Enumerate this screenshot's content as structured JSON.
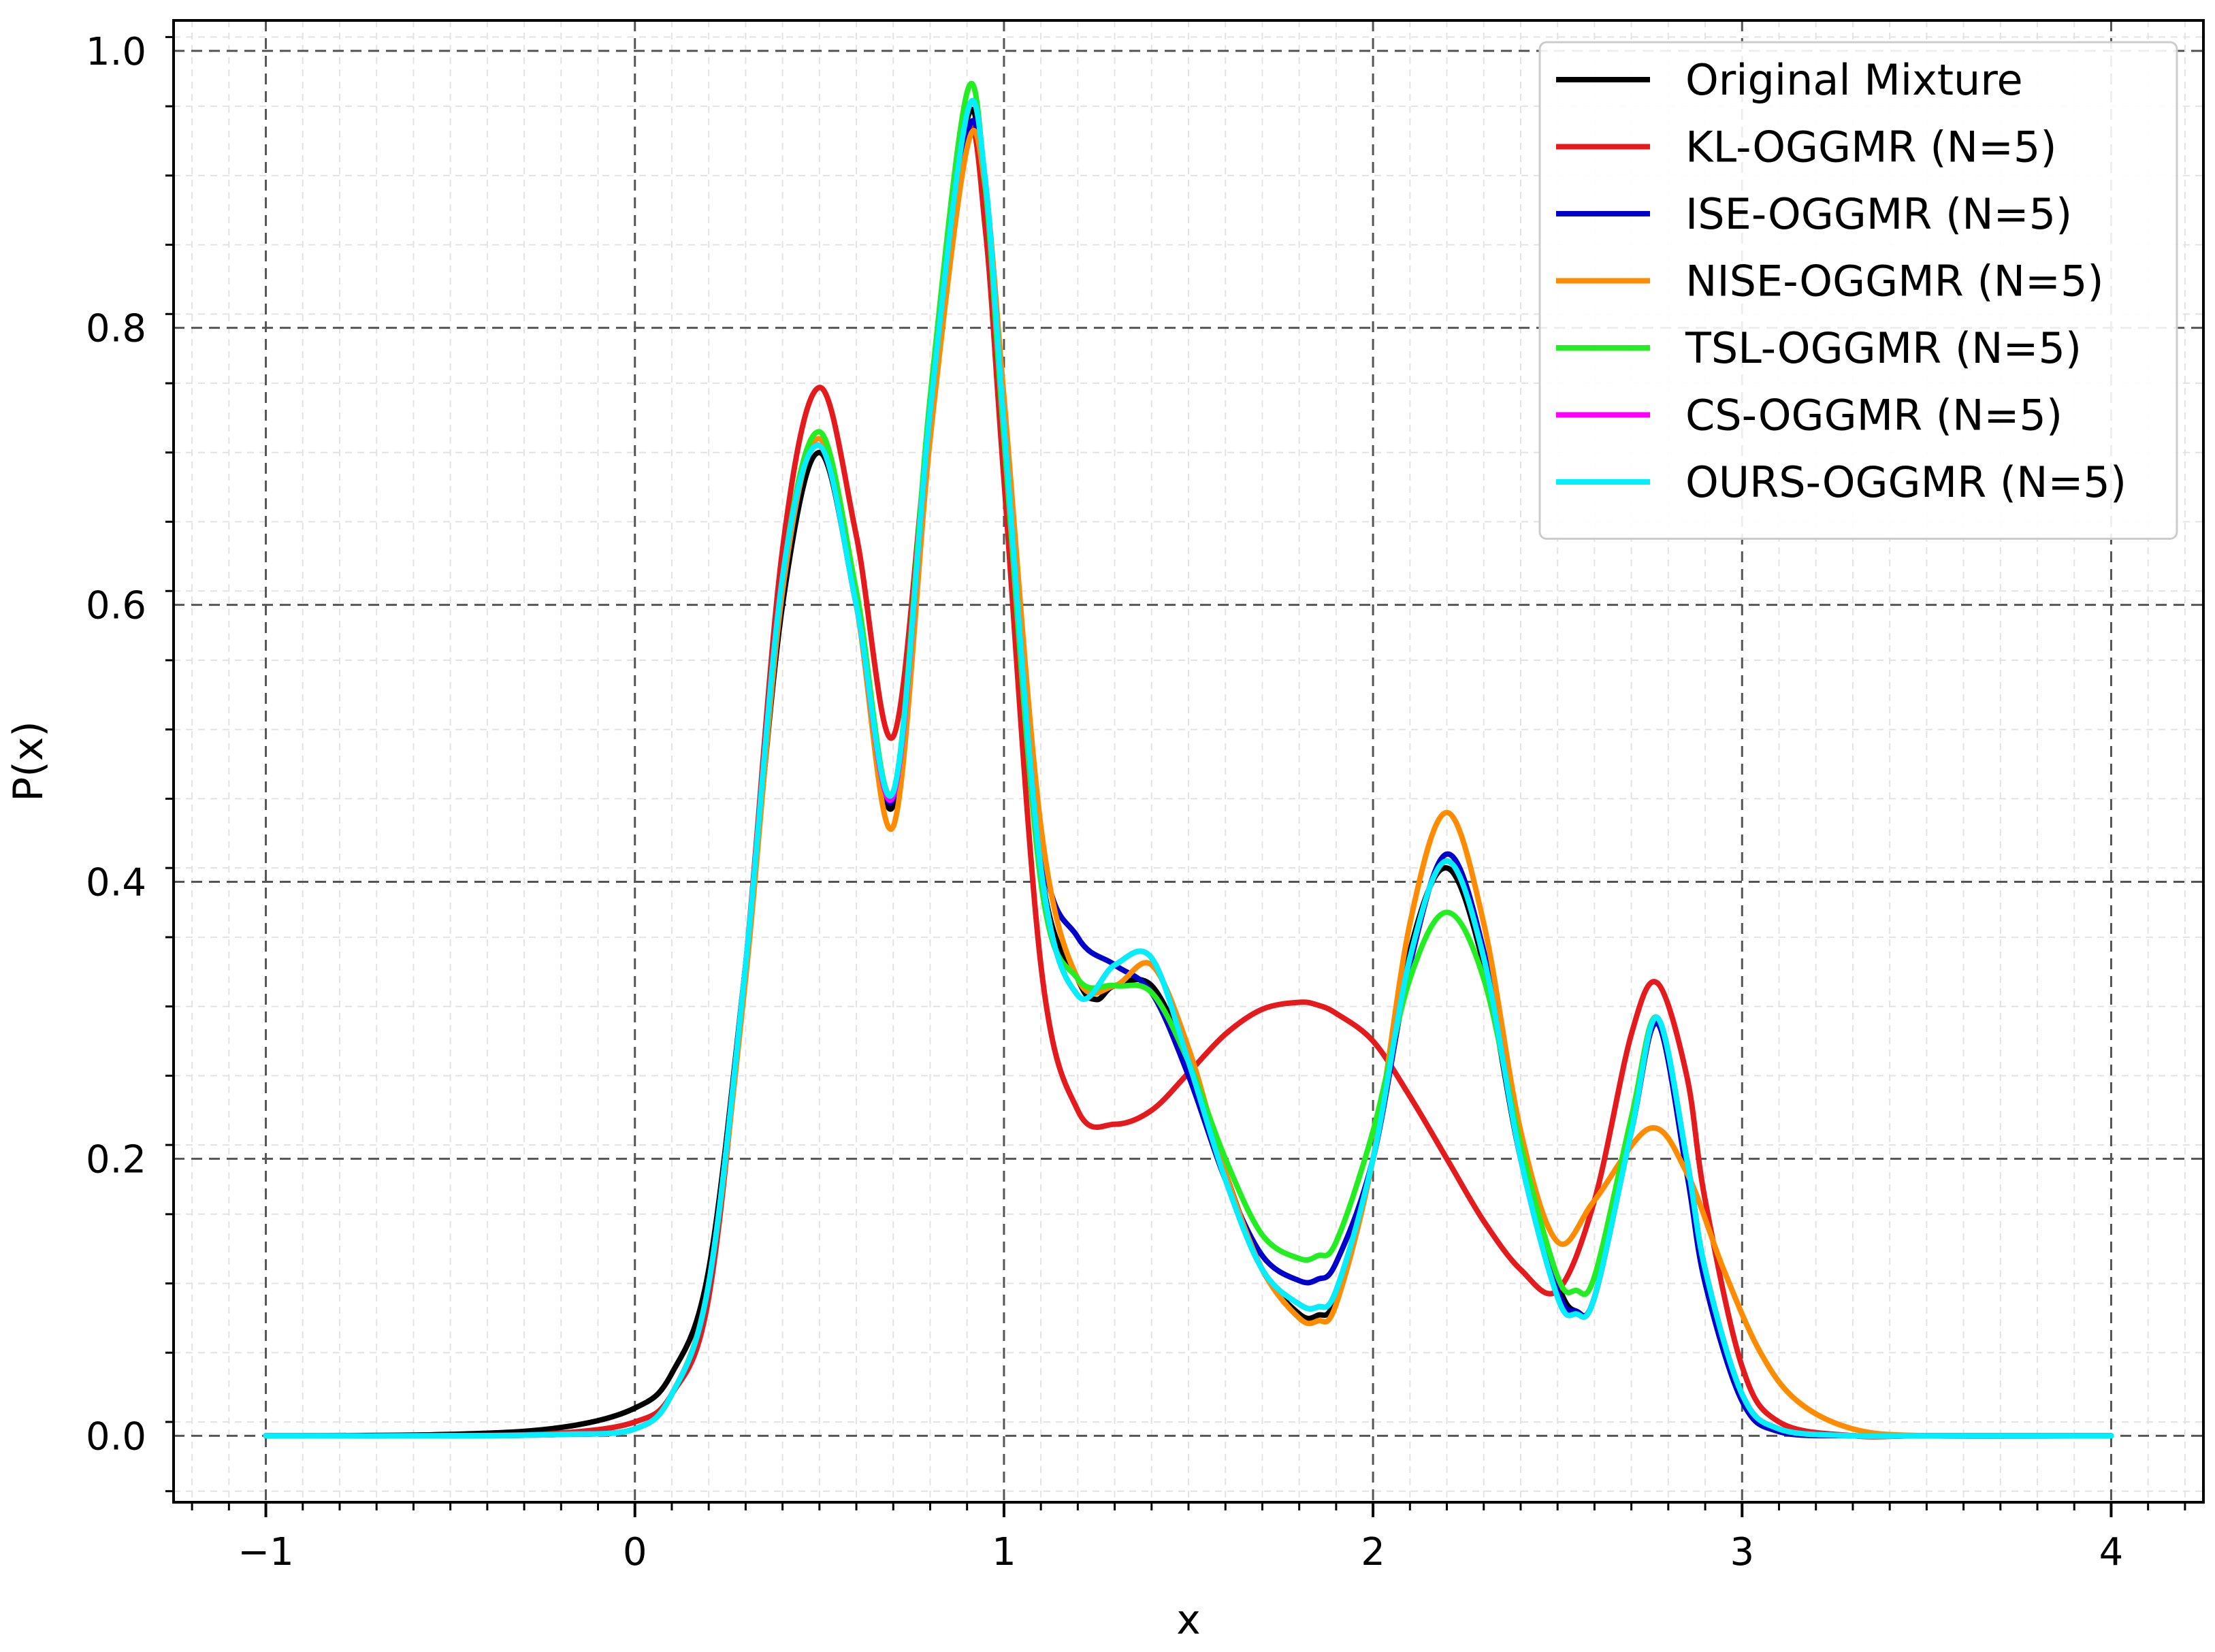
{
  "chart_data": {
    "type": "line",
    "title": "",
    "xlabel": "x",
    "ylabel": "P(x)",
    "xlim": [
      -1.25,
      4.25
    ],
    "ylim": [
      -0.048,
      1.022
    ],
    "x_ticks": [
      -1,
      0,
      1,
      2,
      3,
      4
    ],
    "x_tick_labels": [
      "−1",
      "0",
      "1",
      "2",
      "3",
      "4"
    ],
    "y_ticks": [
      0.0,
      0.2,
      0.4,
      0.6,
      0.8,
      1.0
    ],
    "y_tick_labels": [
      "0.0",
      "0.2",
      "0.4",
      "0.6",
      "0.8",
      "1.0"
    ],
    "grid": true,
    "minor_grid": true,
    "legend_position": "top-right",
    "series": [
      {
        "name": "Original Mixture",
        "color": "#000000",
        "x": [
          -1.0,
          -0.5,
          -0.2,
          0.0,
          0.1,
          0.2,
          0.3,
          0.4,
          0.5,
          0.6,
          0.7,
          0.8,
          0.9,
          0.95,
          1.0,
          1.1,
          1.2,
          1.25,
          1.3,
          1.4,
          1.5,
          1.6,
          1.7,
          1.8,
          1.85,
          1.9,
          2.0,
          2.1,
          2.2,
          2.3,
          2.4,
          2.5,
          2.55,
          2.6,
          2.7,
          2.77,
          2.85,
          2.9,
          3.0,
          3.1,
          3.3,
          3.5,
          4.0
        ],
        "y": [
          0.0,
          0.001,
          0.006,
          0.02,
          0.045,
          0.12,
          0.34,
          0.6,
          0.71,
          0.6,
          0.455,
          0.73,
          0.95,
          0.89,
          0.72,
          0.41,
          0.33,
          0.315,
          0.325,
          0.325,
          0.27,
          0.19,
          0.12,
          0.088,
          0.087,
          0.1,
          0.2,
          0.35,
          0.41,
          0.34,
          0.2,
          0.11,
          0.09,
          0.1,
          0.22,
          0.298,
          0.2,
          0.12,
          0.03,
          0.005,
          0.0,
          0.0,
          0.0
        ]
      },
      {
        "name": "KL-OGGMR (N=5)",
        "color": "#e41a1c",
        "x": [
          -1.0,
          -0.5,
          -0.2,
          0.0,
          0.1,
          0.2,
          0.3,
          0.4,
          0.5,
          0.6,
          0.7,
          0.8,
          0.9,
          0.95,
          1.0,
          1.1,
          1.2,
          1.3,
          1.4,
          1.5,
          1.6,
          1.7,
          1.8,
          1.85,
          1.9,
          2.0,
          2.1,
          2.2,
          2.3,
          2.4,
          2.5,
          2.6,
          2.7,
          2.77,
          2.85,
          2.9,
          3.0,
          3.1,
          3.3,
          3.5,
          4.0
        ],
        "y": [
          0.0,
          0.0,
          0.002,
          0.01,
          0.03,
          0.1,
          0.34,
          0.64,
          0.757,
          0.65,
          0.505,
          0.74,
          0.94,
          0.87,
          0.69,
          0.34,
          0.235,
          0.225,
          0.235,
          0.262,
          0.29,
          0.308,
          0.313,
          0.311,
          0.305,
          0.285,
          0.245,
          0.2,
          0.155,
          0.12,
          0.105,
          0.17,
          0.29,
          0.327,
          0.26,
          0.17,
          0.05,
          0.01,
          0.0,
          0.0,
          0.0
        ]
      },
      {
        "name": "ISE-OGGMR (N=5)",
        "color": "#0000cc",
        "x": [
          -1.0,
          -0.5,
          -0.2,
          0.0,
          0.1,
          0.2,
          0.3,
          0.4,
          0.5,
          0.6,
          0.7,
          0.8,
          0.9,
          0.95,
          1.0,
          1.1,
          1.2,
          1.3,
          1.4,
          1.5,
          1.6,
          1.7,
          1.8,
          1.85,
          1.9,
          2.0,
          2.1,
          2.2,
          2.3,
          2.4,
          2.5,
          2.55,
          2.6,
          2.7,
          2.77,
          2.85,
          2.9,
          3.0,
          3.1,
          3.3,
          3.5,
          4.0
        ],
        "y": [
          0.0,
          0.0,
          0.001,
          0.005,
          0.03,
          0.11,
          0.34,
          0.62,
          0.715,
          0.6,
          0.46,
          0.74,
          0.94,
          0.9,
          0.74,
          0.43,
          0.36,
          0.34,
          0.32,
          0.26,
          0.185,
          0.13,
          0.112,
          0.113,
          0.125,
          0.2,
          0.34,
          0.42,
          0.35,
          0.2,
          0.105,
          0.09,
          0.1,
          0.22,
          0.298,
          0.19,
          0.11,
          0.025,
          0.003,
          0.0,
          0.0,
          0.0
        ]
      },
      {
        "name": "NISE-OGGMR (N=5)",
        "color": "#ff8c00",
        "x": [
          -1.0,
          -0.5,
          -0.2,
          0.0,
          0.1,
          0.2,
          0.3,
          0.4,
          0.5,
          0.6,
          0.7,
          0.8,
          0.9,
          0.95,
          1.0,
          1.1,
          1.2,
          1.3,
          1.4,
          1.5,
          1.6,
          1.7,
          1.8,
          1.85,
          1.9,
          2.0,
          2.1,
          2.2,
          2.3,
          2.4,
          2.5,
          2.6,
          2.75,
          2.85,
          2.95,
          3.05,
          3.15,
          3.3,
          3.5,
          4.0
        ],
        "y": [
          0.0,
          0.0,
          0.001,
          0.005,
          0.03,
          0.11,
          0.33,
          0.61,
          0.72,
          0.6,
          0.44,
          0.72,
          0.93,
          0.9,
          0.75,
          0.44,
          0.33,
          0.325,
          0.34,
          0.28,
          0.19,
          0.12,
          0.085,
          0.083,
          0.095,
          0.2,
          0.37,
          0.45,
          0.37,
          0.22,
          0.14,
          0.17,
          0.222,
          0.19,
          0.12,
          0.06,
          0.025,
          0.005,
          0.0,
          0.0
        ]
      },
      {
        "name": "TSL-OGGMR (N=5)",
        "color": "#22ee22",
        "x": [
          -1.0,
          -0.5,
          -0.2,
          0.0,
          0.1,
          0.2,
          0.3,
          0.4,
          0.5,
          0.6,
          0.7,
          0.8,
          0.9,
          0.95,
          1.0,
          1.1,
          1.2,
          1.3,
          1.4,
          1.5,
          1.6,
          1.7,
          1.8,
          1.85,
          1.9,
          2.0,
          2.1,
          2.2,
          2.3,
          2.4,
          2.5,
          2.55,
          2.6,
          2.7,
          2.77,
          2.85,
          2.9,
          3.0,
          3.1,
          3.3,
          3.5,
          4.0
        ],
        "y": [
          0.0,
          0.0,
          0.001,
          0.005,
          0.03,
          0.11,
          0.34,
          0.62,
          0.725,
          0.61,
          0.465,
          0.75,
          0.97,
          0.9,
          0.72,
          0.4,
          0.33,
          0.325,
          0.32,
          0.27,
          0.2,
          0.145,
          0.128,
          0.13,
          0.14,
          0.22,
          0.33,
          0.378,
          0.33,
          0.21,
          0.115,
          0.105,
          0.115,
          0.23,
          0.302,
          0.2,
          0.12,
          0.03,
          0.005,
          0.0,
          0.0,
          0.0
        ]
      },
      {
        "name": "CS-OGGMR (N=5)",
        "color": "#ff00ff",
        "x": [
          -1.0,
          -0.5,
          -0.2,
          0.0,
          0.1,
          0.2,
          0.3,
          0.4,
          0.5,
          0.6,
          0.7,
          0.8,
          0.9,
          0.95,
          1.0,
          1.1,
          1.2,
          1.3,
          1.4,
          1.5,
          1.6,
          1.7,
          1.8,
          1.85,
          1.9,
          2.0,
          2.1,
          2.2,
          2.3,
          2.4,
          2.5,
          2.55,
          2.6,
          2.7,
          2.77,
          2.85,
          2.9,
          3.0,
          3.1,
          3.3,
          3.5,
          4.0
        ],
        "y": [
          0.0,
          0.0,
          0.001,
          0.005,
          0.03,
          0.11,
          0.34,
          0.62,
          0.715,
          0.6,
          0.462,
          0.74,
          0.955,
          0.905,
          0.73,
          0.41,
          0.318,
          0.34,
          0.345,
          0.27,
          0.185,
          0.12,
          0.095,
          0.093,
          0.105,
          0.2,
          0.345,
          0.415,
          0.345,
          0.2,
          0.1,
          0.088,
          0.1,
          0.22,
          0.302,
          0.2,
          0.12,
          0.03,
          0.005,
          0.0,
          0.0,
          0.0
        ]
      },
      {
        "name": "OURS-OGGMR (N=5)",
        "color": "#00f0ff",
        "x": [
          -1.0,
          -0.5,
          -0.2,
          0.0,
          0.1,
          0.2,
          0.3,
          0.4,
          0.5,
          0.6,
          0.7,
          0.8,
          0.9,
          0.95,
          1.0,
          1.1,
          1.2,
          1.3,
          1.4,
          1.5,
          1.6,
          1.7,
          1.8,
          1.85,
          1.9,
          2.0,
          2.1,
          2.2,
          2.3,
          2.4,
          2.5,
          2.55,
          2.6,
          2.7,
          2.77,
          2.85,
          2.9,
          3.0,
          3.1,
          3.3,
          3.5,
          4.0
        ],
        "y": [
          0.0,
          0.0,
          0.001,
          0.005,
          0.03,
          0.11,
          0.34,
          0.62,
          0.715,
          0.6,
          0.465,
          0.74,
          0.955,
          0.905,
          0.73,
          0.41,
          0.318,
          0.34,
          0.345,
          0.27,
          0.185,
          0.12,
          0.095,
          0.093,
          0.105,
          0.2,
          0.345,
          0.415,
          0.345,
          0.2,
          0.1,
          0.088,
          0.1,
          0.22,
          0.302,
          0.2,
          0.12,
          0.03,
          0.005,
          0.0,
          0.0,
          0.0
        ]
      }
    ]
  }
}
